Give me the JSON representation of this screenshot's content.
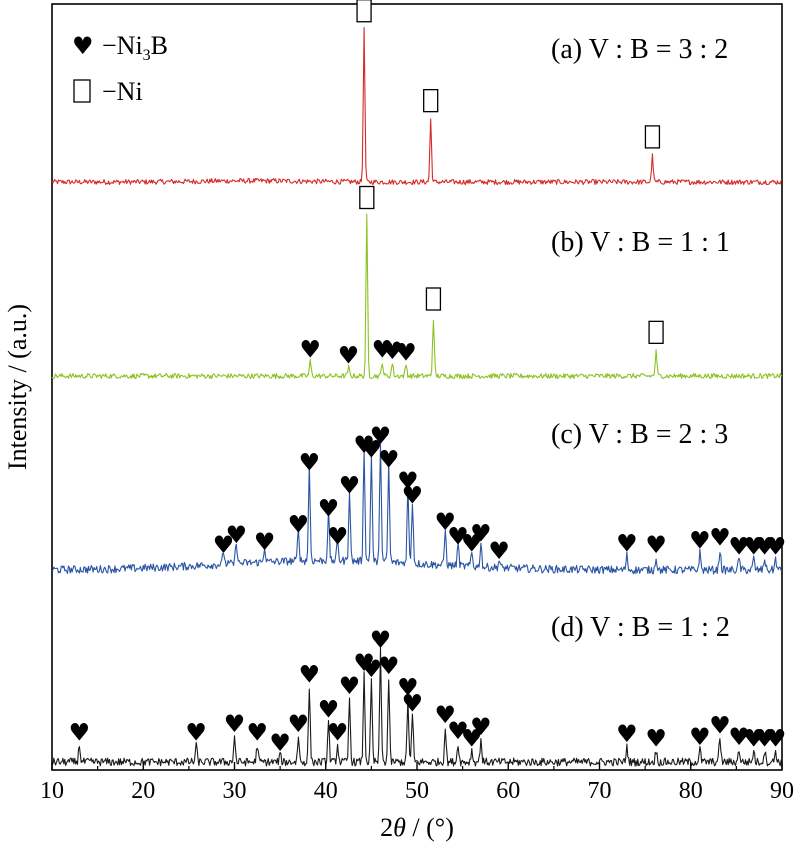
{
  "chart_data": {
    "type": "line",
    "xlabel_prefix": "2",
    "xlabel_theta": "θ",
    "xlabel_suffix": " /  (°)",
    "ylabel": "Intensity / (a.u.)",
    "xlim": [
      10,
      90
    ],
    "xticks": [
      10,
      20,
      30,
      40,
      50,
      60,
      70,
      80,
      90
    ],
    "yticks_shown": false,
    "legend": [
      {
        "symbol": "heart",
        "phase": "Ni",
        "sub": "3",
        "tail": "B",
        "dash": "−"
      },
      {
        "symbol": "box",
        "phase": "Ni",
        "dash": "−"
      }
    ],
    "legend_position": "top-left",
    "series": [
      {
        "name": "(a) V : B = 3 : 2",
        "color": "#d42a2a",
        "baseline": 0.0,
        "peaks": [
          {
            "x": 44.2,
            "h": 10.5,
            "marker": "box"
          },
          {
            "x": 51.5,
            "h": 4.3,
            "marker": "box"
          },
          {
            "x": 75.8,
            "h": 1.8,
            "marker": "box"
          }
        ]
      },
      {
        "name": "(b) V : B = 1 : 1",
        "color": "#8cc323",
        "baseline": 0.0,
        "peaks": [
          {
            "x": 38.3,
            "h": 1.0,
            "marker": "heart"
          },
          {
            "x": 42.5,
            "h": 0.6,
            "marker": "heart"
          },
          {
            "x": 44.5,
            "h": 11.0,
            "marker": "box"
          },
          {
            "x": 46.2,
            "h": 1.0,
            "marker": "heart"
          },
          {
            "x": 47.3,
            "h": 0.9,
            "marker": "heart"
          },
          {
            "x": 48.8,
            "h": 0.8,
            "marker": "heart"
          },
          {
            "x": 51.8,
            "h": 4.0,
            "marker": "box"
          },
          {
            "x": 76.2,
            "h": 1.7,
            "marker": "box"
          }
        ]
      },
      {
        "name": "(c) V : B = 2 : 3",
        "color": "#2b55a3",
        "baseline": 0.0,
        "peaks": [
          {
            "x": 28.8,
            "h": 0.9,
            "marker": "heart"
          },
          {
            "x": 30.2,
            "h": 1.6,
            "marker": "heart"
          },
          {
            "x": 33.3,
            "h": 1.1,
            "marker": "heart"
          },
          {
            "x": 37.0,
            "h": 2.3,
            "marker": "heart"
          },
          {
            "x": 38.2,
            "h": 6.6,
            "marker": "heart"
          },
          {
            "x": 40.3,
            "h": 3.4,
            "marker": "heart"
          },
          {
            "x": 41.3,
            "h": 1.5,
            "marker": "heart"
          },
          {
            "x": 42.6,
            "h": 5.0,
            "marker": "heart"
          },
          {
            "x": 44.2,
            "h": 7.8,
            "marker": "heart"
          },
          {
            "x": 45.0,
            "h": 7.5,
            "marker": "heart"
          },
          {
            "x": 46.0,
            "h": 8.4,
            "marker": "heart"
          },
          {
            "x": 46.9,
            "h": 6.8,
            "marker": "heart"
          },
          {
            "x": 49.0,
            "h": 5.3,
            "marker": "heart"
          },
          {
            "x": 49.5,
            "h": 4.3,
            "marker": "heart"
          },
          {
            "x": 53.1,
            "h": 2.5,
            "marker": "heart"
          },
          {
            "x": 54.5,
            "h": 1.5,
            "marker": "heart"
          },
          {
            "x": 56.0,
            "h": 1.0,
            "marker": "heart"
          },
          {
            "x": 57.0,
            "h": 1.7,
            "marker": "heart"
          },
          {
            "x": 59.0,
            "h": 0.5,
            "marker": "heart"
          },
          {
            "x": 73.0,
            "h": 1.0,
            "marker": "heart"
          },
          {
            "x": 76.2,
            "h": 0.9,
            "marker": "heart"
          },
          {
            "x": 81.0,
            "h": 1.2,
            "marker": "heart"
          },
          {
            "x": 83.2,
            "h": 1.4,
            "marker": "heart"
          },
          {
            "x": 85.3,
            "h": 0.8,
            "marker": "heart"
          },
          {
            "x": 86.9,
            "h": 0.8,
            "marker": "heart"
          },
          {
            "x": 88.1,
            "h": 0.8,
            "marker": "heart"
          },
          {
            "x": 89.3,
            "h": 0.8,
            "marker": "heart"
          }
        ]
      },
      {
        "name": "(d) V : B = 1 : 2",
        "color": "#1a1a1a",
        "baseline": 0.0,
        "peaks": [
          {
            "x": 13.0,
            "h": 1.2,
            "marker": "heart"
          },
          {
            "x": 25.8,
            "h": 1.2,
            "marker": "heart"
          },
          {
            "x": 30.0,
            "h": 1.8,
            "marker": "heart"
          },
          {
            "x": 32.5,
            "h": 1.2,
            "marker": "heart"
          },
          {
            "x": 35.0,
            "h": 0.5,
            "marker": "heart"
          },
          {
            "x": 37.0,
            "h": 1.8,
            "marker": "heart"
          },
          {
            "x": 38.2,
            "h": 5.2,
            "marker": "heart"
          },
          {
            "x": 40.3,
            "h": 2.8,
            "marker": "heart"
          },
          {
            "x": 41.3,
            "h": 1.2,
            "marker": "heart"
          },
          {
            "x": 42.6,
            "h": 4.4,
            "marker": "heart"
          },
          {
            "x": 44.2,
            "h": 6.0,
            "marker": "heart"
          },
          {
            "x": 45.0,
            "h": 5.6,
            "marker": "heart"
          },
          {
            "x": 46.0,
            "h": 7.6,
            "marker": "heart"
          },
          {
            "x": 46.9,
            "h": 5.8,
            "marker": "heart"
          },
          {
            "x": 49.0,
            "h": 4.3,
            "marker": "heart"
          },
          {
            "x": 49.5,
            "h": 3.2,
            "marker": "heart"
          },
          {
            "x": 53.1,
            "h": 2.4,
            "marker": "heart"
          },
          {
            "x": 54.5,
            "h": 1.3,
            "marker": "heart"
          },
          {
            "x": 56.0,
            "h": 0.8,
            "marker": "heart"
          },
          {
            "x": 57.0,
            "h": 1.6,
            "marker": "heart"
          },
          {
            "x": 73.0,
            "h": 1.1,
            "marker": "heart"
          },
          {
            "x": 76.2,
            "h": 0.8,
            "marker": "heart"
          },
          {
            "x": 81.0,
            "h": 0.9,
            "marker": "heart"
          },
          {
            "x": 83.2,
            "h": 1.7,
            "marker": "heart"
          },
          {
            "x": 85.3,
            "h": 0.9,
            "marker": "heart"
          },
          {
            "x": 86.9,
            "h": 0.8,
            "marker": "heart"
          },
          {
            "x": 88.1,
            "h": 0.8,
            "marker": "heart"
          },
          {
            "x": 89.3,
            "h": 0.8,
            "marker": "heart"
          }
        ]
      }
    ]
  }
}
